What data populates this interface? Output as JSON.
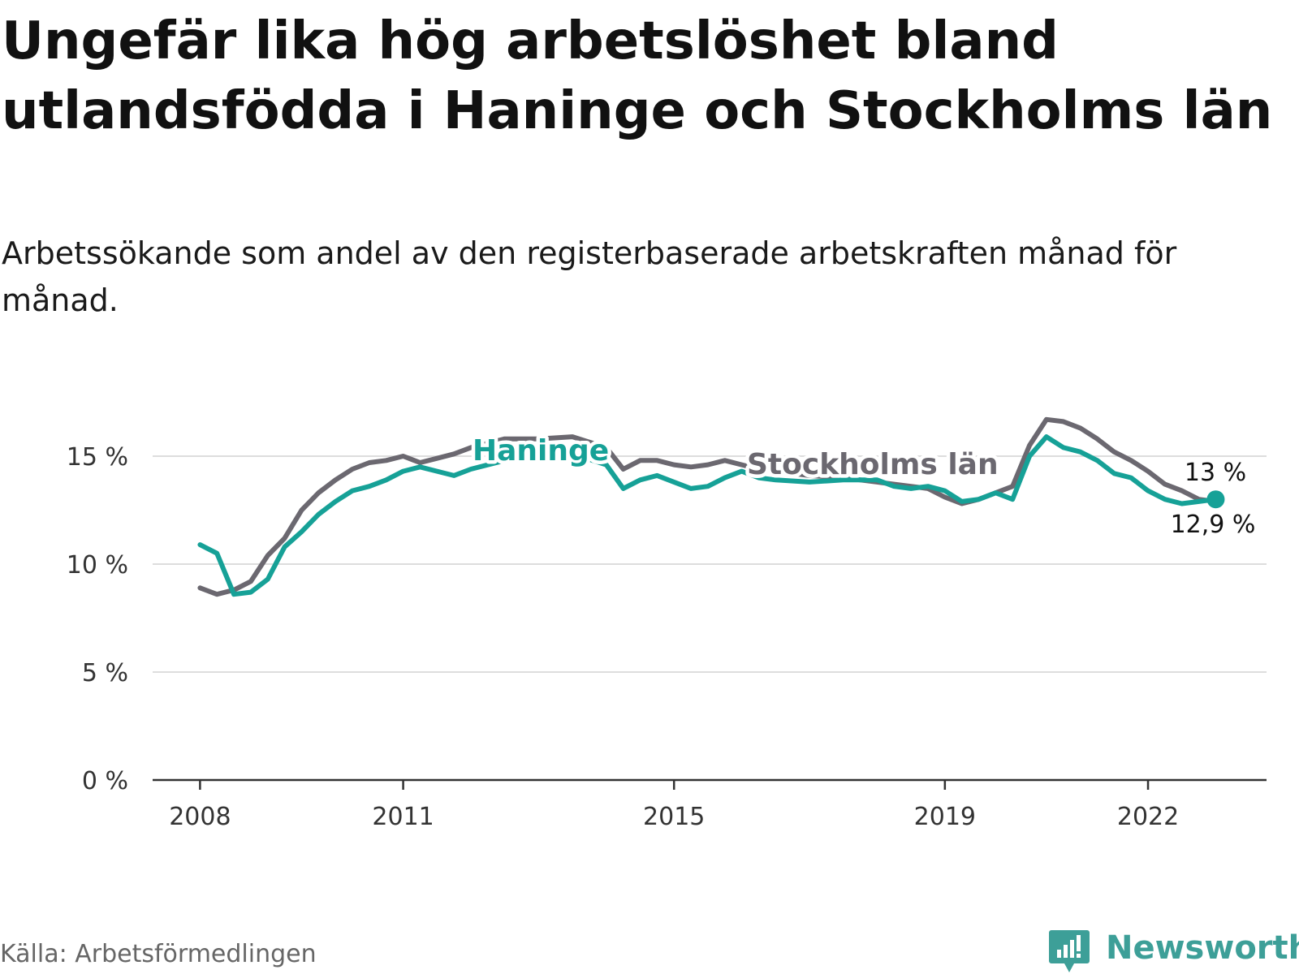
{
  "title": "Ungefär lika hög arbetslöshet bland utlandsfödda i Haninge och Stockholms län",
  "subtitle": "Arbetssökande som andel av den registerbaserade arbetskraften månad för månad.",
  "source": "Källa: Arbetsförmedlingen",
  "brand": "Newsworthy",
  "colors": {
    "haninge": "#16a197",
    "stockholm": "#6b6870",
    "grid": "#dddddd",
    "axis": "#333333",
    "brand": "#3d9f98"
  },
  "chart_data": {
    "type": "line",
    "title": "Ungefär lika hög arbetslöshet bland utlandsfödda i Haninge och Stockholms län",
    "xlabel": "",
    "ylabel": "",
    "ylim": [
      0,
      17
    ],
    "xlim": [
      2007.3,
      2023.75
    ],
    "y_ticks": [
      {
        "value": 0,
        "label": "0 %"
      },
      {
        "value": 5,
        "label": "5 %"
      },
      {
        "value": 10,
        "label": "10 %"
      },
      {
        "value": 15,
        "label": "15 %"
      }
    ],
    "x_ticks": [
      {
        "value": 2008,
        "label": "2008"
      },
      {
        "value": 2011,
        "label": "2011"
      },
      {
        "value": 2015,
        "label": "2015"
      },
      {
        "value": 2019,
        "label": "2019"
      },
      {
        "value": 2022,
        "label": "2022"
      }
    ],
    "grid": true,
    "series": [
      {
        "name": "Stockholms län",
        "label": "Stockholms län",
        "color": "#6b6870",
        "end_label": "12,9 %",
        "x": [
          2008.0,
          2008.25,
          2008.5,
          2008.75,
          2009.0,
          2009.25,
          2009.5,
          2009.75,
          2010.0,
          2010.25,
          2010.5,
          2010.75,
          2011.0,
          2011.25,
          2011.5,
          2011.75,
          2012.0,
          2012.5,
          2013.0,
          2013.5,
          2014.0,
          2014.25,
          2014.5,
          2014.75,
          2015.0,
          2015.25,
          2015.5,
          2015.75,
          2016.0,
          2016.25,
          2016.5,
          2017.0,
          2017.5,
          2018.0,
          2018.25,
          2018.5,
          2018.75,
          2019.0,
          2019.25,
          2019.5,
          2019.75,
          2020.0,
          2020.25,
          2020.5,
          2020.75,
          2021.0,
          2021.25,
          2021.5,
          2021.75,
          2022.0,
          2022.25,
          2022.5,
          2022.75,
          2023.0
        ],
        "values": [
          8.9,
          8.6,
          8.8,
          9.2,
          10.4,
          11.2,
          12.5,
          13.3,
          13.9,
          14.4,
          14.7,
          14.8,
          15.0,
          14.7,
          14.9,
          15.1,
          15.4,
          15.8,
          15.8,
          15.9,
          15.4,
          14.4,
          14.8,
          14.8,
          14.6,
          14.5,
          14.6,
          14.8,
          14.6,
          14.4,
          14.3,
          14.1,
          14.0,
          13.8,
          13.7,
          13.6,
          13.5,
          13.1,
          12.8,
          13.0,
          13.3,
          13.6,
          15.5,
          16.7,
          16.6,
          16.3,
          15.8,
          15.2,
          14.8,
          14.3,
          13.7,
          13.4,
          13.0,
          12.9
        ]
      },
      {
        "name": "Haninge",
        "label": "Haninge",
        "color": "#16a197",
        "end_label": "13 %",
        "x": [
          2008.0,
          2008.25,
          2008.5,
          2008.75,
          2009.0,
          2009.25,
          2009.5,
          2009.75,
          2010.0,
          2010.25,
          2010.5,
          2010.75,
          2011.0,
          2011.25,
          2011.5,
          2011.75,
          2012.0,
          2012.5,
          2013.0,
          2013.5,
          2014.0,
          2014.25,
          2014.5,
          2014.75,
          2015.0,
          2015.25,
          2015.5,
          2015.75,
          2016.0,
          2016.25,
          2016.5,
          2017.0,
          2017.5,
          2018.0,
          2018.25,
          2018.5,
          2018.75,
          2019.0,
          2019.25,
          2019.5,
          2019.75,
          2020.0,
          2020.25,
          2020.5,
          2020.75,
          2021.0,
          2021.25,
          2021.5,
          2021.75,
          2022.0,
          2022.25,
          2022.5,
          2022.75,
          2023.0
        ],
        "values": [
          10.9,
          10.5,
          8.6,
          8.7,
          9.3,
          10.8,
          11.5,
          12.3,
          12.9,
          13.4,
          13.6,
          13.9,
          14.3,
          14.5,
          14.3,
          14.1,
          14.4,
          14.8,
          15.0,
          15.1,
          14.6,
          13.5,
          13.9,
          14.1,
          13.8,
          13.5,
          13.6,
          14.0,
          14.3,
          14.0,
          13.9,
          13.8,
          13.9,
          13.9,
          13.6,
          13.5,
          13.6,
          13.4,
          12.9,
          13.0,
          13.3,
          13.0,
          15.0,
          15.9,
          15.4,
          15.2,
          14.8,
          14.2,
          14.0,
          13.4,
          13.0,
          12.8,
          12.9,
          13.0
        ]
      }
    ]
  }
}
